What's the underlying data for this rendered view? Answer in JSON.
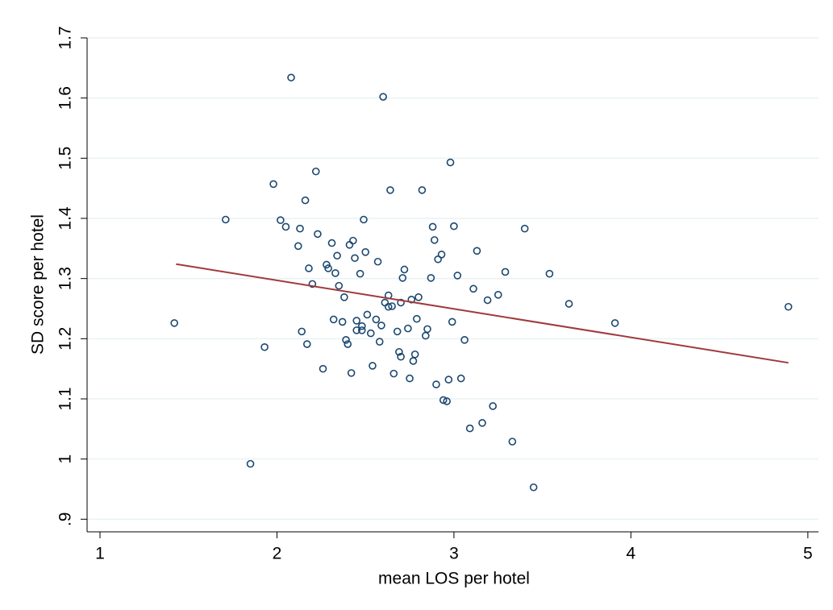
{
  "chart_data": {
    "type": "scatter",
    "x_label": "mean LOS per hotel",
    "y_label": "SD score per hotel",
    "color": "#1a476f",
    "x": [
      1.42,
      1.71,
      1.85,
      1.93,
      1.98,
      2.02,
      2.05,
      2.08,
      2.12,
      2.13,
      2.14,
      2.16,
      2.17,
      2.18,
      2.2,
      2.22,
      2.23,
      2.26,
      2.28,
      2.29,
      2.31,
      2.32,
      2.33,
      2.34,
      2.35,
      2.37,
      2.38,
      2.39,
      2.4,
      2.41,
      2.42,
      2.43,
      2.44,
      2.45,
      2.45,
      2.47,
      2.48,
      2.48,
      2.49,
      2.5,
      2.51,
      2.53,
      2.54,
      2.56,
      2.57,
      2.58,
      2.59,
      2.6,
      2.61,
      2.63,
      2.63,
      2.64,
      2.65,
      2.66,
      2.68,
      2.69,
      2.7,
      2.7,
      2.71,
      2.72,
      2.74,
      2.75,
      2.76,
      2.77,
      2.78,
      2.79,
      2.8,
      2.82,
      2.84,
      2.85,
      2.87,
      2.88,
      2.89,
      2.9,
      2.91,
      2.93,
      2.94,
      2.96,
      2.97,
      2.98,
      2.99,
      3.0,
      3.02,
      3.04,
      3.06,
      3.09,
      3.11,
      3.13,
      3.16,
      3.19,
      3.22,
      3.25,
      3.29,
      3.33,
      3.4,
      3.45,
      3.54,
      3.65,
      3.91,
      4.89
    ],
    "values": [
      1.226,
      1.398,
      0.992,
      1.186,
      1.457,
      1.397,
      1.386,
      1.634,
      1.354,
      1.383,
      1.212,
      1.43,
      1.191,
      1.317,
      1.291,
      1.478,
      1.374,
      1.15,
      1.323,
      1.317,
      1.359,
      1.232,
      1.309,
      1.338,
      1.288,
      1.228,
      1.269,
      1.198,
      1.191,
      1.356,
      1.143,
      1.363,
      1.334,
      1.23,
      1.214,
      1.308,
      1.214,
      1.221,
      1.398,
      1.344,
      1.24,
      1.209,
      1.155,
      1.232,
      1.328,
      1.195,
      1.222,
      1.602,
      1.26,
      1.253,
      1.272,
      1.447,
      1.254,
      1.142,
      1.212,
      1.178,
      1.26,
      1.17,
      1.301,
      1.315,
      1.217,
      1.134,
      1.265,
      1.163,
      1.174,
      1.233,
      1.269,
      1.447,
      1.205,
      1.216,
      1.301,
      1.386,
      1.364,
      1.124,
      1.332,
      1.34,
      1.098,
      1.096,
      1.132,
      1.493,
      1.228,
      1.387,
      1.305,
      1.134,
      1.198,
      1.051,
      1.283,
      1.346,
      1.06,
      1.264,
      1.088,
      1.273,
      1.311,
      1.029,
      1.383,
      0.953,
      1.308,
      1.258,
      1.226,
      1.253
    ],
    "fit_line": {
      "x": [
        1.43,
        4.89
      ],
      "y": [
        1.324,
        1.16
      ],
      "color": "#a0393c"
    },
    "xlim": [
      0.927,
      5.06
    ],
    "ylim": [
      0.879,
      1.7
    ],
    "xticks": [
      1,
      2,
      3,
      4,
      5
    ],
    "yticks": [
      {
        "value": 0.9,
        "label": ".9"
      },
      1,
      1.1,
      1.2,
      1.3,
      1.4,
      1.5,
      1.6,
      1.7
    ],
    "grid": true
  }
}
